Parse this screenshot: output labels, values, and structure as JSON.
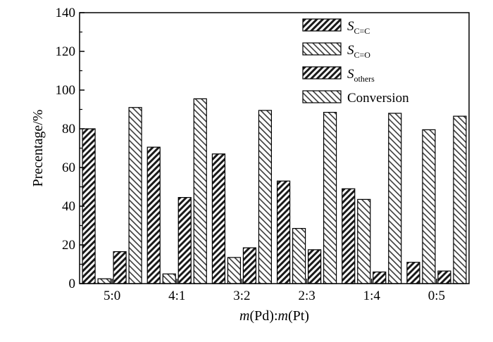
{
  "chart_data": {
    "type": "bar",
    "categories": [
      "5:0",
      "4:1",
      "3:2",
      "2:3",
      "1:4",
      "0:5"
    ],
    "series": [
      {
        "name": "S_{C=C}",
        "label_main": "S",
        "label_sub": "C=C",
        "fill": "#2b2b2b",
        "pattern": "dark-diag-right",
        "values": [
          80,
          70.5,
          67,
          53,
          49,
          11
        ]
      },
      {
        "name": "S_{C=O}",
        "label_main": "S",
        "label_sub": "C=O",
        "fill": "#909090",
        "pattern": "light-diag-left",
        "values": [
          2.5,
          5,
          13.5,
          28.5,
          43.5,
          79.5
        ]
      },
      {
        "name": "S_{others}",
        "label_main": "S",
        "label_sub": "others",
        "fill": "#4a4a4a",
        "pattern": "dark-diag-right",
        "values": [
          16.5,
          44.5,
          18.5,
          17.5,
          6,
          6.5
        ]
      },
      {
        "name": "Conversion",
        "label_main": "Conversion",
        "label_sub": "",
        "fill": "#b0b0b0",
        "pattern": "light-diag-left",
        "values": [
          91,
          95.5,
          89.5,
          88.5,
          88,
          86.5
        ]
      }
    ],
    "xlabel": {
      "parts": [
        {
          "text": "m",
          "italic": true
        },
        {
          "text": "(Pd):",
          "italic": false
        },
        {
          "text": "m",
          "italic": true
        },
        {
          "text": "(Pt)",
          "italic": false
        }
      ]
    },
    "ylabel": "Precentage/%",
    "ylim": [
      0,
      140
    ],
    "yticks": [
      "0",
      "20",
      "40",
      "60",
      "80",
      "100",
      "120",
      "140"
    ],
    "grid": false,
    "legend_position": "top-right"
  }
}
